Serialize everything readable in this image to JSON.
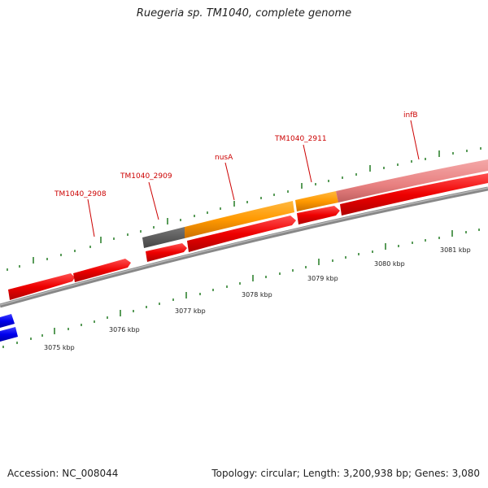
{
  "header": {
    "title": "Ruegeria sp. TM1040, complete genome"
  },
  "footer": {
    "accession": "Accession: NC_008044",
    "topology": "Topology: circular; Length: 3,200,938 bp; Genes: 3,080"
  },
  "gene_labels": [
    "TM1040_2908",
    "TM1040_2909",
    "nusA",
    "TM1040_2911",
    "infB"
  ],
  "kbp_labels": [
    "3075 kbp",
    "3076 kbp",
    "3077 kbp",
    "3078 kbp",
    "3079 kbp",
    "3080 kbp",
    "3081 kbp"
  ],
  "colors": {
    "forward_gene": "#ee0000",
    "reverse_gene": "#0000ee",
    "highlight_orange": "#ff9900",
    "highlight_gray": "#555555",
    "highlight_pink": "#ee8888",
    "label_red": "#cc0000",
    "tick_green": "#006600",
    "backbone": "#888888"
  }
}
